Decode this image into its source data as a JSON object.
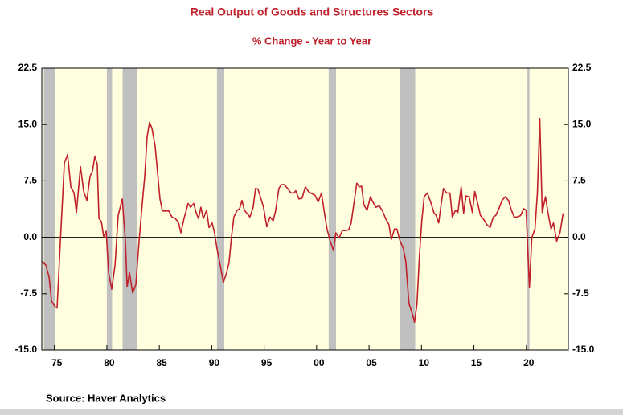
{
  "chart_data": {
    "type": "line",
    "title": "Real Output of Goods and Structures Sectors",
    "subtitle": "% Change - Year to Year",
    "source": "Source:  Haver Analytics",
    "xlim": [
      1973.8,
      2024.0
    ],
    "xticks": [
      {
        "value": 1975,
        "label": "75"
      },
      {
        "value": 1980,
        "label": "80"
      },
      {
        "value": 1985,
        "label": "85"
      },
      {
        "value": 1990,
        "label": "90"
      },
      {
        "value": 1995,
        "label": "95"
      },
      {
        "value": 2000,
        "label": "00"
      },
      {
        "value": 2005,
        "label": "05"
      },
      {
        "value": 2010,
        "label": "10"
      },
      {
        "value": 2015,
        "label": "15"
      },
      {
        "value": 2020,
        "label": "20"
      }
    ],
    "ylim": [
      -15,
      22.5
    ],
    "yticks": [
      {
        "value": -15,
        "label": "-15.0"
      },
      -7.5,
      {
        "value": 0,
        "label": "0.0"
      },
      7.5,
      {
        "value": 15,
        "label": "15.0"
      },
      22.5
    ],
    "recessions": [
      [
        1974.0,
        1975.1
      ],
      [
        1980.0,
        1980.5
      ],
      [
        1981.5,
        1982.85
      ],
      [
        1990.5,
        1991.2
      ],
      [
        2001.15,
        2001.85
      ],
      [
        2007.95,
        2009.4
      ],
      [
        2020.1,
        2020.3
      ]
    ],
    "recession_color": "#c0c0c0",
    "background": "#ffffe0",
    "series": [
      {
        "color": "#c0202a",
        "x": [
          1973.81,
          1974.19,
          1974.5,
          1974.73,
          1975.04,
          1975.26,
          1975.57,
          1975.95,
          1976.26,
          1976.57,
          1976.87,
          1977.1,
          1977.49,
          1977.79,
          1978.1,
          1978.4,
          1978.63,
          1978.86,
          1979.09,
          1979.25,
          1979.48,
          1979.71,
          1979.94,
          1980.17,
          1980.47,
          1980.78,
          1981.08,
          1981.47,
          1981.77,
          1981.93,
          1982.16,
          1982.46,
          1982.77,
          1983.07,
          1983.3,
          1983.61,
          1983.84,
          1984.07,
          1984.3,
          1984.61,
          1984.84,
          1985.07,
          1985.3,
          1985.6,
          1985.91,
          1986.21,
          1986.52,
          1986.83,
          1987.06,
          1987.36,
          1987.75,
          1987.98,
          1988.28,
          1988.51,
          1988.74,
          1988.97,
          1989.2,
          1989.51,
          1989.74,
          1990.04,
          1990.27,
          1990.5,
          1990.81,
          1991.11,
          1991.42,
          1991.65,
          1991.88,
          1992.11,
          1992.42,
          1992.65,
          1992.88,
          1993.11,
          1993.41,
          1993.64,
          1993.95,
          1994.18,
          1994.41,
          1994.64,
          1994.94,
          1995.25,
          1995.56,
          1995.86,
          1996.09,
          1996.4,
          1996.63,
          1996.93,
          1997.24,
          1997.55,
          1997.85,
          1998.01,
          1998.31,
          1998.62,
          1998.92,
          1999.23,
          1999.54,
          1999.84,
          2000.15,
          2000.46,
          2000.76,
          2000.99,
          2001.3,
          2001.61,
          2001.83,
          2002.14,
          2002.45,
          2002.75,
          2003.06,
          2003.29,
          2003.6,
          2003.83,
          2004.06,
          2004.29,
          2004.51,
          2004.82,
          2005.13,
          2005.36,
          2005.66,
          2005.97,
          2006.28,
          2006.58,
          2006.89,
          2007.12,
          2007.42,
          2007.65,
          2007.96,
          2008.27,
          2008.5,
          2008.8,
          2009.11,
          2009.34,
          2009.57,
          2009.8,
          2010.03,
          2010.26,
          2010.56,
          2010.87,
          2011.18,
          2011.41,
          2011.64,
          2011.87,
          2012.1,
          2012.4,
          2012.71,
          2012.94,
          2013.24,
          2013.47,
          2013.78,
          2014.01,
          2014.24,
          2014.55,
          2014.85,
          2015.08,
          2015.39,
          2015.62,
          2015.92,
          2016.23,
          2016.54,
          2016.84,
          2017.07,
          2017.38,
          2017.68,
          2017.99,
          2018.3,
          2018.53,
          2018.83,
          2019.14,
          2019.45,
          2019.75,
          2019.98,
          2020.29,
          2020.52,
          2020.82,
          2021.05,
          2021.28,
          2021.51,
          2021.82,
          2022.05,
          2022.35,
          2022.58,
          2022.89,
          2023.2,
          2023.5
        ],
        "values": [
          -3.2,
          -3.7,
          -5.3,
          -8.5,
          -9.2,
          -9.4,
          -0.5,
          9.9,
          11.0,
          6.7,
          5.9,
          3.3,
          9.4,
          6.1,
          4.9,
          8.1,
          8.8,
          10.8,
          9.7,
          2.5,
          2.1,
          0,
          0.8,
          -4.7,
          -6.9,
          -3.7,
          2.9,
          5.1,
          -0.5,
          -6.6,
          -4.7,
          -7.4,
          -6.3,
          -0.5,
          3.3,
          8.1,
          13.4,
          15.3,
          14.5,
          12.1,
          8.6,
          5.1,
          3.5,
          3.5,
          3.5,
          2.7,
          2.5,
          2.0,
          0.6,
          2.5,
          4.5,
          4.0,
          4.5,
          3.3,
          2.5,
          4.0,
          2.5,
          3.6,
          1.3,
          1.9,
          0.6,
          -1.5,
          -3.7,
          -6.0,
          -4.7,
          -3.4,
          0,
          2.7,
          3.6,
          3.8,
          4.9,
          3.6,
          3.1,
          2.7,
          4.0,
          6.5,
          6.4,
          5.4,
          4.0,
          1.4,
          2.7,
          2.2,
          3.5,
          6.5,
          7.0,
          7.0,
          6.5,
          5.9,
          5.9,
          6.2,
          5.1,
          5.2,
          6.7,
          6.1,
          5.8,
          5.6,
          4.7,
          5.9,
          3.1,
          1.1,
          -0.5,
          -1.8,
          0.6,
          -0.1,
          0.9,
          0.9,
          1.0,
          1.9,
          4.9,
          7.2,
          6.7,
          6.8,
          4.3,
          3.6,
          5.4,
          4.7,
          4.0,
          4.2,
          3.5,
          2.5,
          1.7,
          -0.3,
          1.1,
          1.1,
          -0.5,
          -1.5,
          -3.2,
          -8.8,
          -10.1,
          -11.3,
          -8.9,
          -2.6,
          2.2,
          5.4,
          5.9,
          4.7,
          3.3,
          2.9,
          1.9,
          4.3,
          6.5,
          5.9,
          5.9,
          2.7,
          3.6,
          3.3,
          6.7,
          3.2,
          5.5,
          5.4,
          3.3,
          6.1,
          4.3,
          2.9,
          2.4,
          1.7,
          1.3,
          2.7,
          2.9,
          3.8,
          4.9,
          5.4,
          4.9,
          3.8,
          2.7,
          2.7,
          2.9,
          3.8,
          3.6,
          -6.7,
          0,
          1.1,
          5.9,
          15.8,
          3.3,
          5.4,
          3.3,
          1.1,
          1.9,
          -0.5,
          0.6,
          3.2
        ]
      }
    ]
  }
}
